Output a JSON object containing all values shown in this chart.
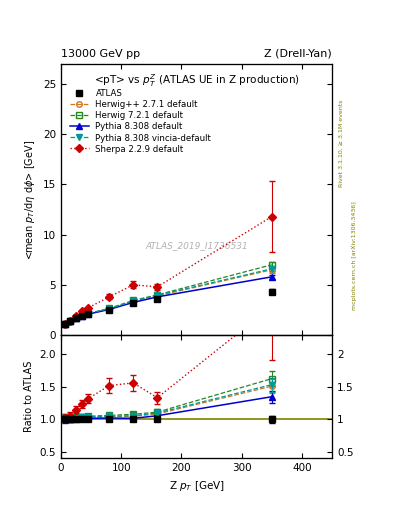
{
  "title_top_left": "13000 GeV pp",
  "title_top_right": "Z (Drell-Yan)",
  "plot_title": "<pT> vs $p_T^Z$ (ATLAS UE in Z production)",
  "xlabel": "Z $p_T$ [GeV]",
  "ylabel_main": "<mean $p_T$/d$\\eta$ d$\\phi$> [GeV]",
  "ylabel_ratio": "Ratio to ATLAS",
  "watermark": "ATLAS_2019_I1736531",
  "rivet_text": "Rivet 3.1.10, ≥ 3.1M events",
  "mcplots_text": "mcplots.cern.ch [arXiv:1306.3436]",
  "atlas_x": [
    6,
    15,
    25,
    35,
    45,
    80,
    120,
    160,
    350
  ],
  "atlas_y": [
    1.1,
    1.35,
    1.65,
    1.9,
    2.05,
    2.5,
    3.2,
    3.6,
    4.3
  ],
  "atlas_yerr": [
    0.05,
    0.05,
    0.05,
    0.06,
    0.06,
    0.08,
    0.1,
    0.12,
    0.25
  ],
  "herwig271_x": [
    6,
    15,
    25,
    35,
    45,
    80,
    120,
    160,
    350
  ],
  "herwig271_y": [
    1.12,
    1.38,
    1.68,
    1.95,
    2.1,
    2.6,
    3.35,
    3.9,
    6.5
  ],
  "herwig271_yerr": [
    0.02,
    0.02,
    0.02,
    0.03,
    0.03,
    0.04,
    0.06,
    0.08,
    0.3
  ],
  "herwig721_x": [
    6,
    15,
    25,
    35,
    45,
    80,
    120,
    160,
    350
  ],
  "herwig721_y": [
    1.13,
    1.4,
    1.7,
    1.98,
    2.15,
    2.65,
    3.45,
    4.0,
    7.0
  ],
  "herwig721_yerr": [
    0.02,
    0.02,
    0.02,
    0.03,
    0.03,
    0.04,
    0.06,
    0.08,
    0.3
  ],
  "pythia8_x": [
    6,
    15,
    25,
    35,
    45,
    80,
    120,
    160,
    350
  ],
  "pythia8_y": [
    1.1,
    1.35,
    1.65,
    1.93,
    2.08,
    2.55,
    3.25,
    3.8,
    5.8
  ],
  "pythia8_yerr": [
    0.02,
    0.02,
    0.02,
    0.03,
    0.03,
    0.04,
    0.06,
    0.08,
    0.2
  ],
  "pythia8v_x": [
    6,
    15,
    25,
    35,
    45,
    80,
    120,
    160,
    350
  ],
  "pythia8v_y": [
    1.12,
    1.38,
    1.68,
    1.97,
    2.13,
    2.62,
    3.38,
    3.95,
    6.6
  ],
  "pythia8v_yerr": [
    0.02,
    0.02,
    0.02,
    0.03,
    0.03,
    0.04,
    0.06,
    0.08,
    0.25
  ],
  "sherpa_x": [
    6,
    15,
    25,
    35,
    45,
    80,
    120,
    160,
    350
  ],
  "sherpa_y": [
    1.13,
    1.42,
    1.9,
    2.35,
    2.7,
    3.8,
    5.0,
    4.8,
    11.8
  ],
  "sherpa_yerr": [
    0.04,
    0.06,
    0.08,
    0.1,
    0.12,
    0.25,
    0.35,
    0.3,
    3.5
  ],
  "colors": {
    "atlas": "#000000",
    "herwig271": "#cc7722",
    "herwig721": "#228822",
    "pythia8": "#0000cc",
    "pythia8v": "#009999",
    "sherpa": "#cc0000"
  },
  "ylim_main": [
    0,
    27
  ],
  "ylim_ratio": [
    0.4,
    2.3
  ],
  "xlim": [
    0,
    450
  ]
}
